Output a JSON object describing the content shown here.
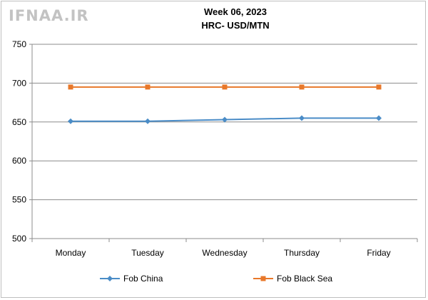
{
  "watermark": "IFNAA.IR",
  "chart_data": {
    "type": "line",
    "title": "Week 06, 2023",
    "subtitle": "HRC- USD/MTN",
    "categories": [
      "Monday",
      "Tuesday",
      "Wednesday",
      "Thursday",
      "Friday"
    ],
    "ylim": [
      500,
      750
    ],
    "yticks": [
      500,
      550,
      600,
      650,
      700,
      750
    ],
    "grid": "horizontal",
    "legend": "bottom",
    "series": [
      {
        "name": "Fob China",
        "color": "#4a8cc7",
        "marker": "diamond",
        "values": [
          651,
          651,
          653,
          655,
          655
        ]
      },
      {
        "name": "Fob Black Sea",
        "color": "#e8782a",
        "marker": "square",
        "values": [
          695,
          695,
          695,
          695,
          695
        ]
      }
    ]
  }
}
